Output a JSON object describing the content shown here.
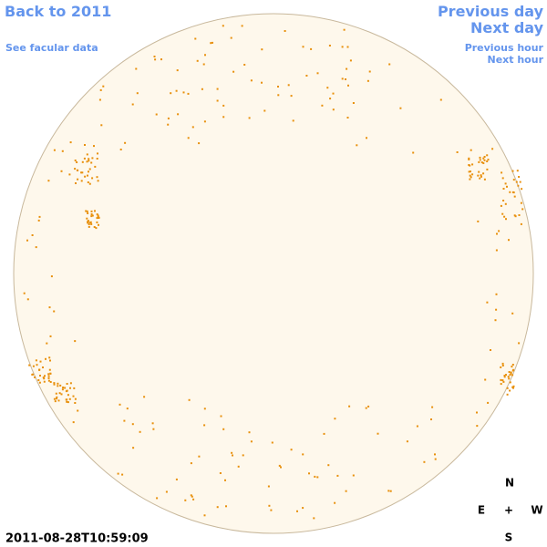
{
  "links": {
    "back": "Back to 2011",
    "previous_day": "Previous day",
    "next_day": "Next day",
    "facular": "See facular data",
    "previous_hour": "Previous hour",
    "next_hour": "Next hour"
  },
  "timestamp": "2011-08-28T10:59:09",
  "compass": {
    "north": "N",
    "east": "E",
    "center": "+",
    "west": "W",
    "south": "S"
  }
}
